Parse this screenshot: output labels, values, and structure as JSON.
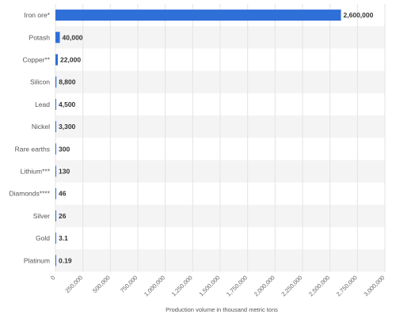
{
  "chart_data": {
    "type": "bar",
    "orientation": "horizontal",
    "categories": [
      "Iron ore*",
      "Potash",
      "Copper**",
      "Silicon",
      "Lead",
      "Nickel",
      "Rare earths",
      "Lithium***",
      "Diamonds****",
      "Silver",
      "Gold",
      "Platinum"
    ],
    "values": [
      2600000,
      40000,
      22000,
      8800,
      4500,
      3300,
      300,
      130,
      46,
      26,
      3.1,
      0.19
    ],
    "value_labels": [
      "2,600,000",
      "40,000",
      "22,000",
      "8,800",
      "4,500",
      "3,300",
      "300",
      "130",
      "46",
      "26",
      "3.1",
      "0.19"
    ],
    "xlabel": "Production volume in thousand metric tons",
    "ylabel": "",
    "xlim": [
      0,
      3000000
    ],
    "x_ticks": [
      0,
      250000,
      500000,
      750000,
      1000000,
      1250000,
      1500000,
      1750000,
      2000000,
      2250000,
      2500000,
      2750000,
      3000000
    ],
    "x_tick_labels": [
      "0",
      "250,000",
      "500,000",
      "750,000",
      "1,000,000",
      "1,250,000",
      "1,500,000",
      "1,750,000",
      "2,000,000",
      "2,250,000",
      "2,500,000",
      "2,750,000",
      "3,000,000"
    ],
    "grid": true,
    "alternating_row_bands": true,
    "legend": "none",
    "colors": {
      "bar": "#2f6fd8",
      "band": "#f4f4f4",
      "grid": "#e3e3e3"
    }
  }
}
